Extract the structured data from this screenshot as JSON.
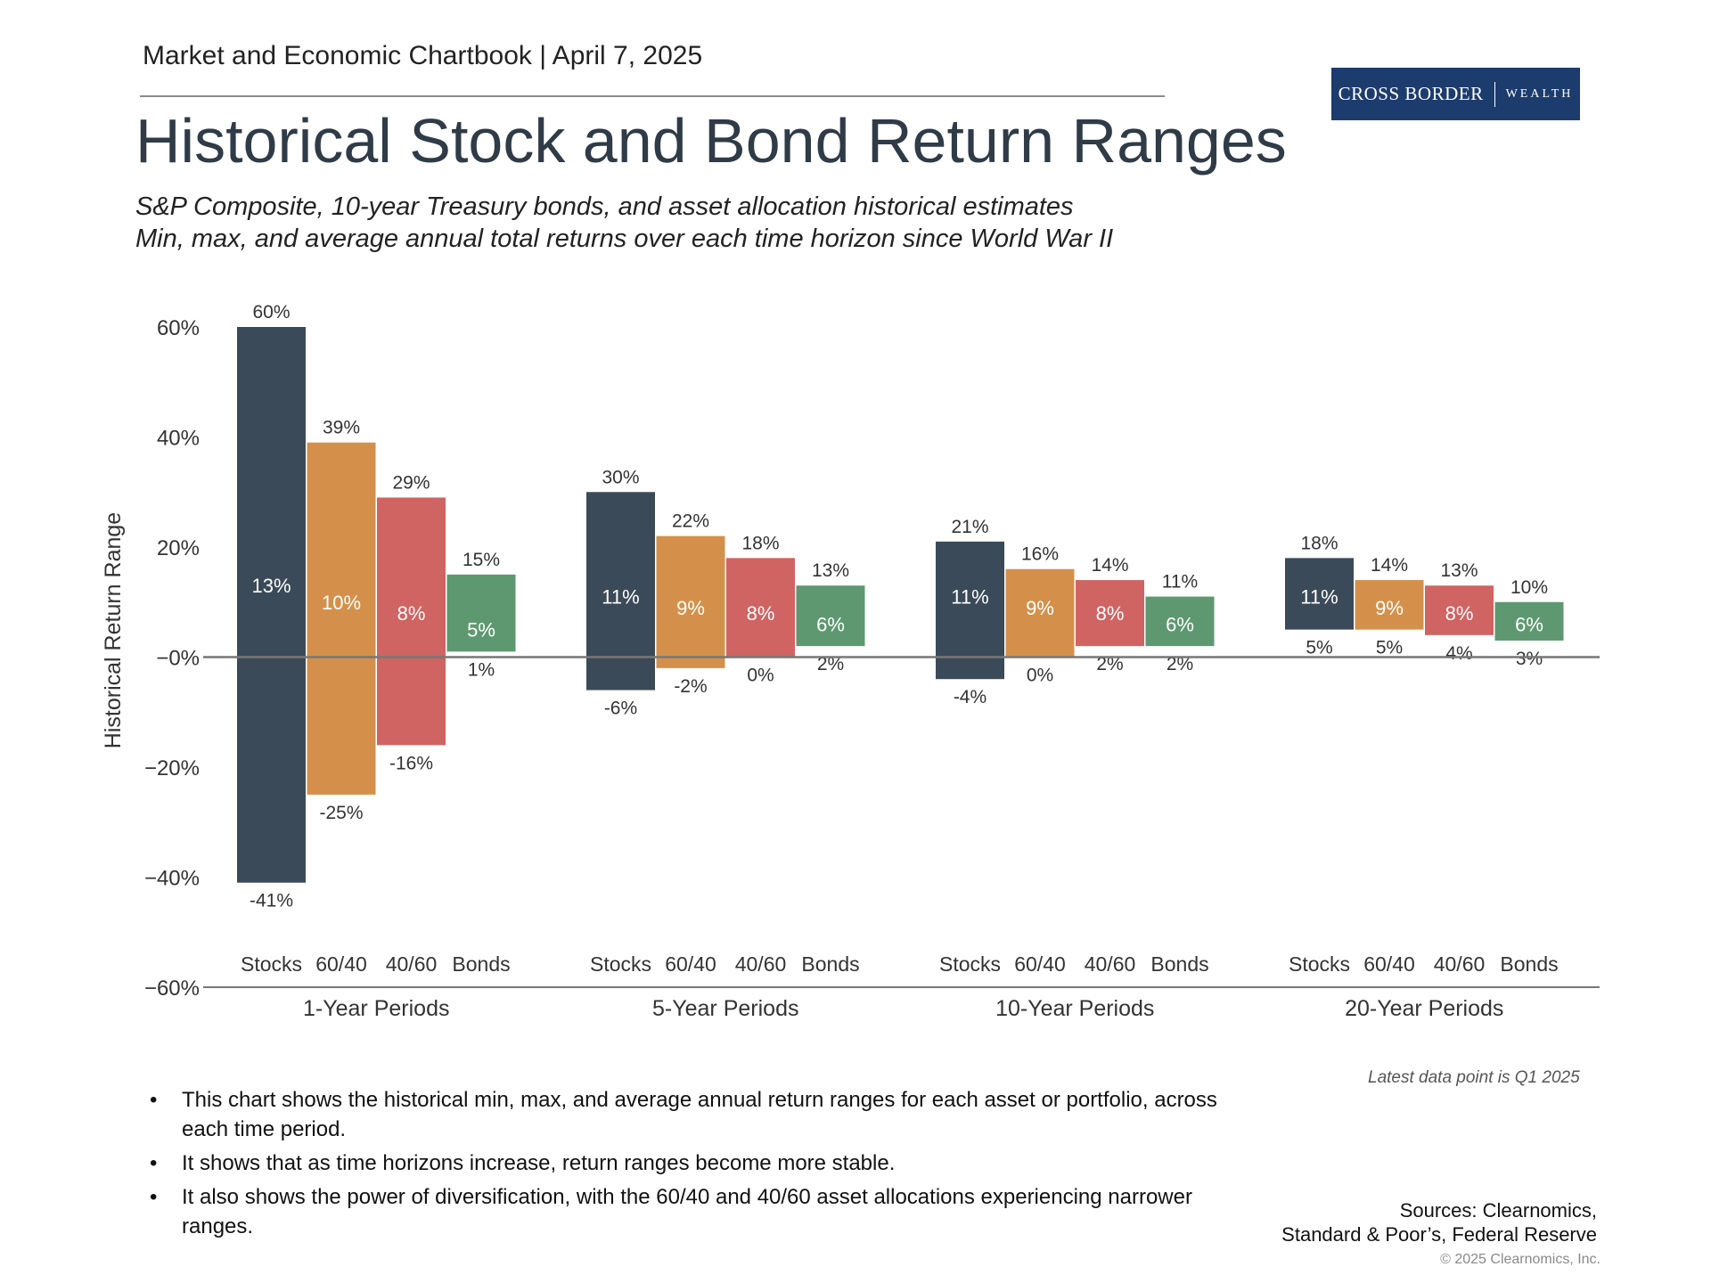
{
  "header": {
    "text": "Market and Economic Chartbook | April 7, 2025"
  },
  "logo": {
    "word1": "CROSS BORDER",
    "word2": "WEALTH",
    "color": "#1d3c6e"
  },
  "title": "Historical Stock and Bond Return Ranges",
  "subtitle": {
    "line1": "S&P Composite, 10-year Treasury bonds, and asset allocation historical estimates",
    "line2": "Min, max, and average annual total returns over each time horizon since World War II"
  },
  "chart_data": {
    "type": "bar",
    "subtype": "floating-range",
    "ylabel": "Historical Return Range",
    "ylim": [
      -60,
      60
    ],
    "yticks": [
      {
        "value": 60,
        "label": "60%"
      },
      {
        "value": 40,
        "label": "40%"
      },
      {
        "value": 20,
        "label": "20%"
      },
      {
        "value": 0,
        "label": "−0%"
      },
      {
        "value": -20,
        "label": "−20%"
      },
      {
        "value": -40,
        "label": "−40%"
      },
      {
        "value": -60,
        "label": "−60%"
      }
    ],
    "series_colors": {
      "Stocks": "#3b4a58",
      "60/40": "#d4904a",
      "40/60": "#cf6462",
      "Bonds": "#5e9870"
    },
    "groups": [
      {
        "label": "1-Year Periods",
        "bars": [
          {
            "category": "Stocks",
            "max": 60,
            "min": -41,
            "avg": 13,
            "max_label": "60%",
            "min_label": "-41%",
            "avg_label": "13%"
          },
          {
            "category": "60/40",
            "max": 39,
            "min": -25,
            "avg": 10,
            "max_label": "39%",
            "min_label": "-25%",
            "avg_label": "10%"
          },
          {
            "category": "40/60",
            "max": 29,
            "min": -16,
            "avg": 8,
            "max_label": "29%",
            "min_label": "-16%",
            "avg_label": "8%"
          },
          {
            "category": "Bonds",
            "max": 15,
            "min": 1,
            "avg": 5,
            "max_label": "15%",
            "min_label": "1%",
            "avg_label": "5%"
          }
        ]
      },
      {
        "label": "5-Year Periods",
        "bars": [
          {
            "category": "Stocks",
            "max": 30,
            "min": -6,
            "avg": 11,
            "max_label": "30%",
            "min_label": "-6%",
            "avg_label": "11%"
          },
          {
            "category": "60/40",
            "max": 22,
            "min": -2,
            "avg": 9,
            "max_label": "22%",
            "min_label": "-2%",
            "avg_label": "9%"
          },
          {
            "category": "40/60",
            "max": 18,
            "min": 0,
            "avg": 8,
            "max_label": "18%",
            "min_label": "0%",
            "avg_label": "8%"
          },
          {
            "category": "Bonds",
            "max": 13,
            "min": 2,
            "avg": 6,
            "max_label": "13%",
            "min_label": "2%",
            "avg_label": "6%"
          }
        ]
      },
      {
        "label": "10-Year Periods",
        "bars": [
          {
            "category": "Stocks",
            "max": 21,
            "min": -4,
            "avg": 11,
            "max_label": "21%",
            "min_label": "-4%",
            "avg_label": "11%"
          },
          {
            "category": "60/40",
            "max": 16,
            "min": 0,
            "avg": 9,
            "max_label": "16%",
            "min_label": "0%",
            "avg_label": "9%"
          },
          {
            "category": "40/60",
            "max": 14,
            "min": 2,
            "avg": 8,
            "max_label": "14%",
            "min_label": "2%",
            "avg_label": "8%"
          },
          {
            "category": "Bonds",
            "max": 11,
            "min": 2,
            "avg": 6,
            "max_label": "11%",
            "min_label": "2%",
            "avg_label": "6%"
          }
        ]
      },
      {
        "label": "20-Year Periods",
        "bars": [
          {
            "category": "Stocks",
            "max": 18,
            "min": 5,
            "avg": 11,
            "max_label": "18%",
            "min_label": "5%",
            "avg_label": "11%"
          },
          {
            "category": "60/40",
            "max": 14,
            "min": 5,
            "avg": 9,
            "max_label": "14%",
            "min_label": "5%",
            "avg_label": "9%"
          },
          {
            "category": "40/60",
            "max": 13,
            "min": 4,
            "avg": 8,
            "max_label": "13%",
            "min_label": "4%",
            "avg_label": "8%"
          },
          {
            "category": "Bonds",
            "max": 10,
            "min": 3,
            "avg": 6,
            "max_label": "10%",
            "min_label": "3%",
            "avg_label": "6%"
          }
        ]
      }
    ]
  },
  "note": "Latest data point is Q1 2025",
  "bullets": [
    "This chart shows the historical min, max, and average annual return ranges for each asset or portfolio, across each time period.",
    "It shows that as time horizons increase, return ranges become more stable.",
    "It also shows the power of diversification, with the 60/40 and 40/60 asset allocations experiencing narrower ranges."
  ],
  "sources": {
    "line1": "Sources: Clearnomics,",
    "line2": "Standard & Poor’s, Federal Reserve"
  },
  "copyright": "© 2025 Clearnomics, Inc."
}
